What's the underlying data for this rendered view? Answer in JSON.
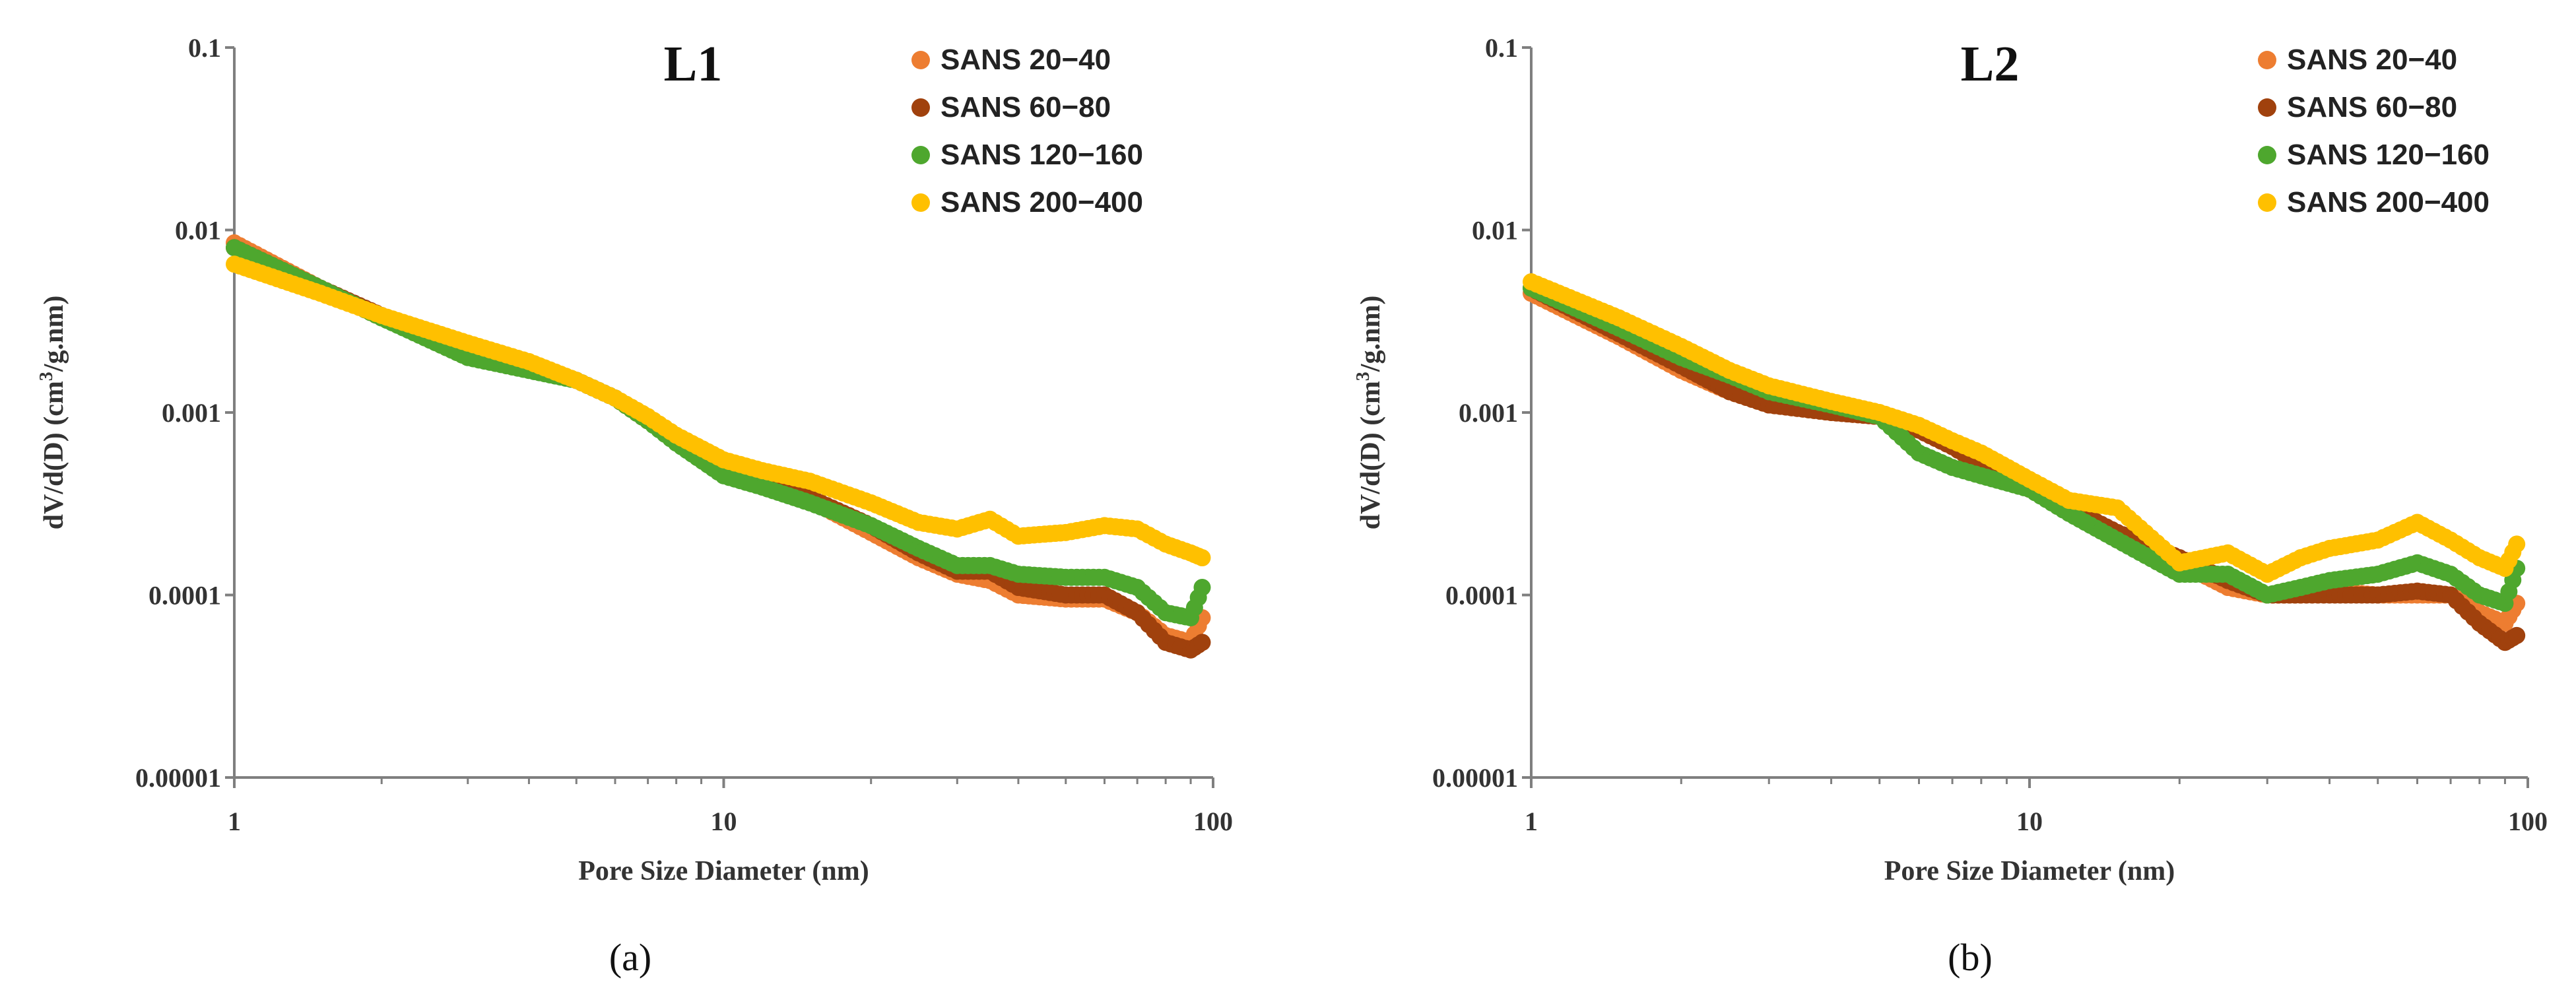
{
  "chart_data": [
    {
      "type": "scatter",
      "title": "L1",
      "caption": "(a)",
      "xlabel": "Pore Size Diameter (nm)",
      "ylabel_main": "dV/d(D) (cm",
      "ylabel_sup": "3",
      "ylabel_tail": "/g.nm)",
      "x_scale": "log",
      "y_scale": "log",
      "xlim": [
        1,
        100
      ],
      "ylim": [
        1e-05,
        0.1
      ],
      "x_ticks": [
        1,
        10,
        100
      ],
      "x_tick_labels": [
        "1",
        "10",
        "100"
      ],
      "y_ticks": [
        1e-05,
        0.0001,
        0.001,
        0.01,
        0.1
      ],
      "y_tick_labels": [
        "0.00001",
        "0.0001",
        "0.001",
        "0.01",
        "0.1"
      ],
      "legend_position": "top-right",
      "series": [
        {
          "name": "SANS 20−40",
          "color": "#ED7D31",
          "x": [
            1,
            1.5,
            2,
            3,
            4,
            5,
            6,
            7,
            8,
            10,
            12,
            15,
            20,
            25,
            30,
            35,
            40,
            50,
            60,
            70,
            80,
            90,
            95
          ],
          "y": [
            0.0085,
            0.0048,
            0.0033,
            0.0022,
            0.0018,
            0.0015,
            0.0012,
            0.0009,
            0.0007,
            0.00048,
            0.0004,
            0.00033,
            0.00022,
            0.00016,
            0.00013,
            0.00012,
            0.0001,
            9.5e-05,
            9.5e-05,
            8e-05,
            6e-05,
            5.5e-05,
            7.5e-05
          ]
        },
        {
          "name": "SANS 60−80",
          "color": "#A0410D",
          "x": [
            1,
            1.5,
            2,
            3,
            4,
            5,
            6,
            7,
            8,
            10,
            12,
            15,
            20,
            25,
            30,
            35,
            40,
            50,
            60,
            70,
            80,
            90,
            95
          ],
          "y": [
            0.008,
            0.0048,
            0.0034,
            0.0023,
            0.0018,
            0.0015,
            0.0012,
            0.0009,
            0.0007,
            0.00048,
            0.0004,
            0.00034,
            0.00024,
            0.00017,
            0.000135,
            0.000135,
            0.00011,
            0.0001,
            0.0001,
            8e-05,
            5.5e-05,
            5e-05,
            5.5e-05
          ]
        },
        {
          "name": "SANS 120−160",
          "color": "#4EA72E",
          "x": [
            1,
            1.5,
            2,
            3,
            4,
            5,
            6,
            7,
            8,
            10,
            12,
            15,
            20,
            25,
            30,
            35,
            40,
            50,
            60,
            70,
            80,
            90,
            95
          ],
          "y": [
            0.008,
            0.0048,
            0.0033,
            0.002,
            0.0017,
            0.0015,
            0.0012,
            0.0009,
            0.00068,
            0.00045,
            0.00039,
            0.00032,
            0.00024,
            0.00018,
            0.000145,
            0.000145,
            0.00013,
            0.000125,
            0.000125,
            0.00011,
            8e-05,
            7.5e-05,
            0.00011
          ]
        },
        {
          "name": "SANS 200−400",
          "color": "#FFC000",
          "x": [
            1,
            1.5,
            2,
            3,
            4,
            5,
            6,
            7,
            8,
            10,
            12,
            15,
            20,
            25,
            30,
            35,
            40,
            50,
            60,
            70,
            80,
            90,
            95
          ],
          "y": [
            0.0065,
            0.0045,
            0.0034,
            0.0024,
            0.0019,
            0.0015,
            0.0012,
            0.00095,
            0.00075,
            0.00055,
            0.00048,
            0.00042,
            0.00032,
            0.00025,
            0.00023,
            0.00026,
            0.00021,
            0.00022,
            0.00024,
            0.00023,
            0.00019,
            0.00017,
            0.00016
          ]
        }
      ]
    },
    {
      "type": "scatter",
      "title": "L2",
      "caption": "(b)",
      "xlabel": "Pore Size Diameter (nm)",
      "ylabel_main": "dV/d(D) (cm",
      "ylabel_sup": "3",
      "ylabel_tail": "/g.nm)",
      "x_scale": "log",
      "y_scale": "log",
      "xlim": [
        1,
        100
      ],
      "ylim": [
        1e-05,
        0.1
      ],
      "x_ticks": [
        1,
        10,
        100
      ],
      "x_tick_labels": [
        "1",
        "10",
        "100"
      ],
      "y_ticks": [
        1e-05,
        0.0001,
        0.001,
        0.01,
        0.1
      ],
      "y_tick_labels": [
        "0.00001",
        "0.0001",
        "0.001",
        "0.01",
        "0.1"
      ],
      "legend_position": "top-right",
      "series": [
        {
          "name": "SANS 20−40",
          "color": "#ED7D31",
          "x": [
            1,
            1.5,
            2,
            2.5,
            3,
            4,
            5,
            6,
            7,
            8,
            10,
            12,
            15,
            20,
            25,
            30,
            35,
            40,
            50,
            60,
            70,
            80,
            90,
            95
          ],
          "y": [
            0.0045,
            0.0026,
            0.0017,
            0.0013,
            0.0011,
            0.001,
            0.00095,
            0.0008,
            0.00065,
            0.00052,
            0.00038,
            0.0003,
            0.00022,
            0.00015,
            0.00011,
            0.0001,
            0.0001,
            0.000105,
            0.0001,
            0.0001,
            0.0001,
            8e-05,
            7e-05,
            9e-05
          ]
        },
        {
          "name": "SANS 60−80",
          "color": "#A0410D",
          "x": [
            1,
            1.5,
            2,
            2.5,
            3,
            4,
            5,
            6,
            7,
            8,
            10,
            12,
            15,
            20,
            25,
            30,
            35,
            40,
            50,
            60,
            70,
            80,
            90,
            95
          ],
          "y": [
            0.0048,
            0.0027,
            0.0018,
            0.0013,
            0.0011,
            0.001,
            0.00095,
            0.0008,
            0.00065,
            0.00052,
            0.00038,
            0.0003,
            0.00022,
            0.00016,
            0.00012,
            0.0001,
            0.0001,
            0.0001,
            0.0001,
            0.000105,
            0.0001,
            7e-05,
            5.5e-05,
            6e-05
          ]
        },
        {
          "name": "SANS 120−160",
          "color": "#4EA72E",
          "x": [
            1,
            1.5,
            2,
            2.5,
            3,
            4,
            5,
            6,
            7,
            8,
            10,
            12,
            15,
            20,
            25,
            30,
            35,
            40,
            50,
            60,
            70,
            80,
            90,
            95
          ],
          "y": [
            0.0048,
            0.0029,
            0.002,
            0.0016,
            0.0013,
            0.0011,
            0.00095,
            0.0006,
            0.0005,
            0.00045,
            0.00038,
            0.00028,
            0.0002,
            0.00013,
            0.00013,
            0.0001,
            0.00011,
            0.00012,
            0.00013,
            0.00015,
            0.00013,
            0.0001,
            9e-05,
            0.00014
          ]
        },
        {
          "name": "SANS 200−400",
          "color": "#FFC000",
          "x": [
            1,
            1.5,
            2,
            2.5,
            3,
            4,
            5,
            6,
            7,
            8,
            10,
            12,
            15,
            20,
            25,
            30,
            35,
            40,
            50,
            60,
            70,
            80,
            90,
            95
          ],
          "y": [
            0.0052,
            0.0033,
            0.0023,
            0.0017,
            0.0014,
            0.00115,
            0.001,
            0.00085,
            0.0007,
            0.0006,
            0.00043,
            0.00033,
            0.0003,
            0.00015,
            0.00017,
            0.00013,
            0.00016,
            0.00018,
            0.0002,
            0.00025,
            0.0002,
            0.00016,
            0.00014,
            0.00019
          ]
        }
      ]
    }
  ]
}
